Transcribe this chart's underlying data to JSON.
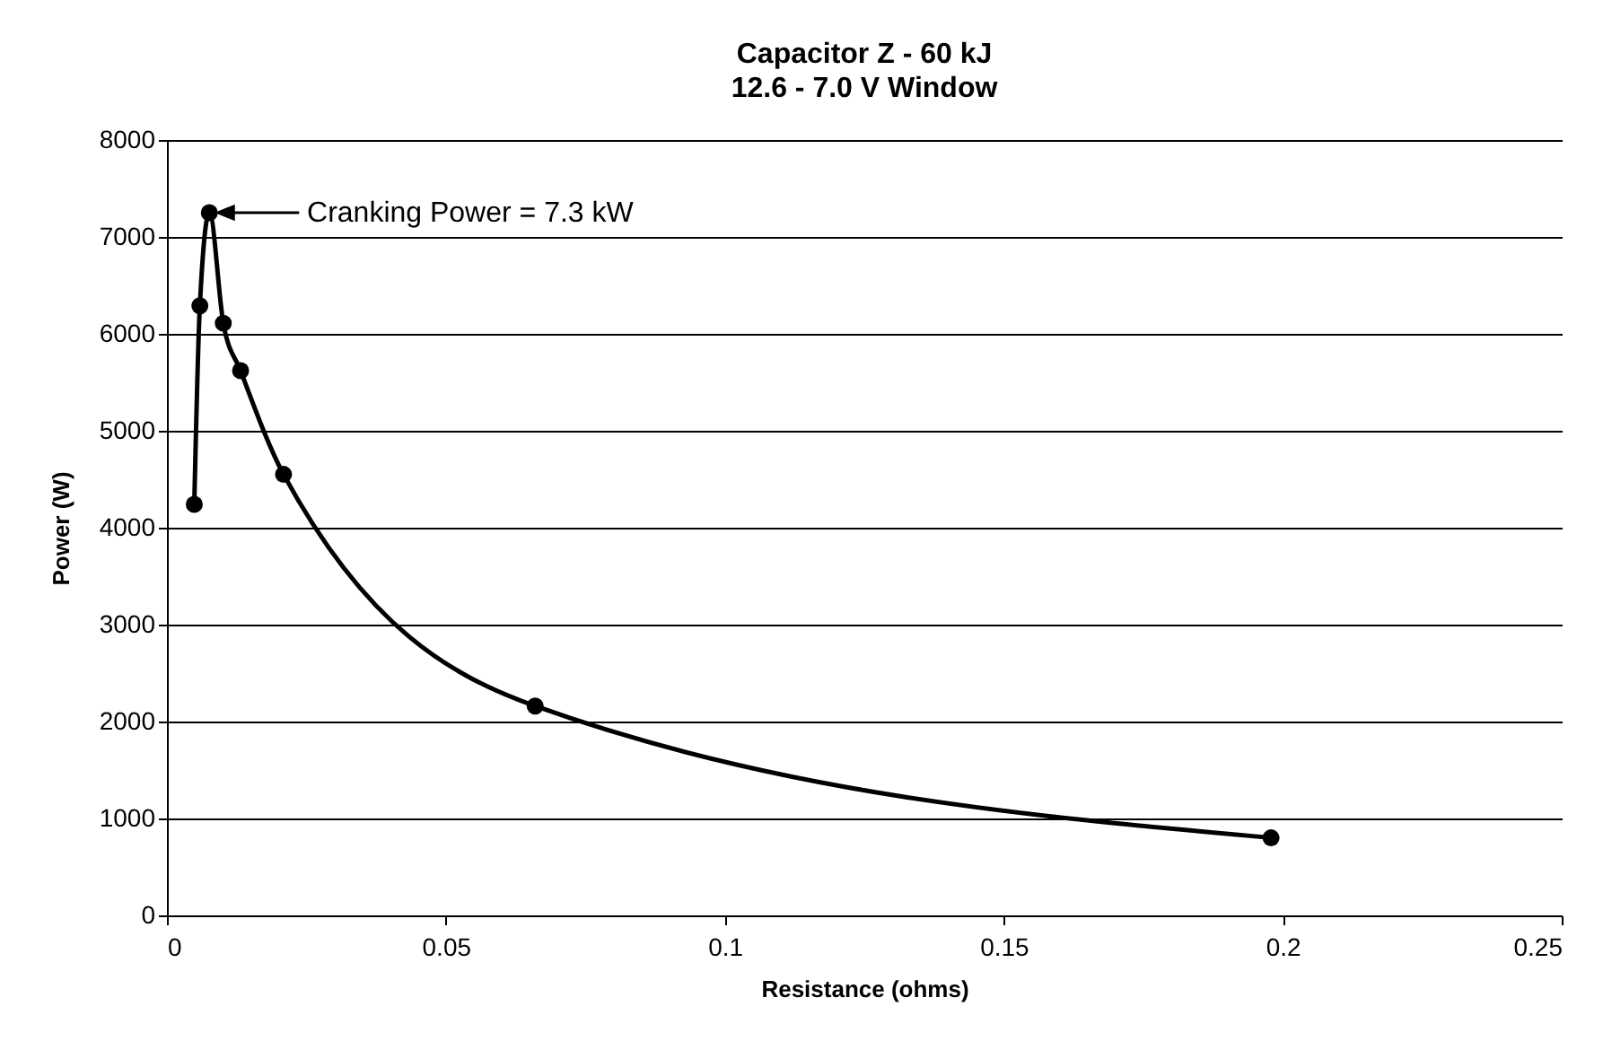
{
  "chart_data": {
    "type": "line",
    "title": "Capacitor Z - 60 kJ",
    "subtitle": "12.6 - 7.0 V Window",
    "xlabel": "Resistance (ohms)",
    "ylabel": "Power (W)",
    "x": [
      0.0049,
      0.0059,
      0.0076,
      0.0101,
      0.0132,
      0.0209,
      0.066,
      0.1979
    ],
    "series": [
      {
        "color": "#000000",
        "values": [
          4240,
          6290,
          7250,
          6110,
          5620,
          4550,
          2160,
          800
        ]
      }
    ],
    "xlim": [
      0,
      0.25
    ],
    "xticks": [
      0,
      0.05,
      0.1,
      0.15,
      0.2,
      0.25
    ],
    "ylim": [
      0,
      8000
    ],
    "yticks": [
      0,
      1000,
      2000,
      3000,
      4000,
      5000,
      6000,
      7000,
      8000
    ],
    "grid": "y",
    "marker": "circle",
    "annotations": [
      "Cranking Power = 7.3 kW"
    ]
  }
}
